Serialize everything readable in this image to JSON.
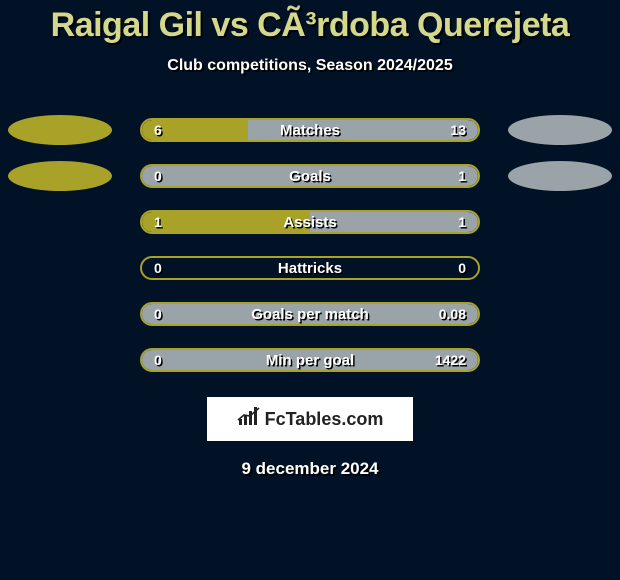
{
  "title": "Raigal Gil vs CÃ³rdoba Querejeta",
  "subtitle": "Club competitions, Season 2024/2025",
  "title_color": "#d4d88a",
  "left_color": "#a8a228",
  "right_color": "#9aa4a8",
  "track_border": "#a8a228",
  "background": "#011126",
  "rows": [
    {
      "label": "Matches",
      "left_val": "6",
      "right_val": "13",
      "left_pct": 31.6,
      "right_pct": 68.4,
      "show_ovals": true
    },
    {
      "label": "Goals",
      "left_val": "0",
      "right_val": "1",
      "left_pct": 0,
      "right_pct": 100,
      "show_ovals": true
    },
    {
      "label": "Assists",
      "left_val": "1",
      "right_val": "1",
      "left_pct": 50,
      "right_pct": 50,
      "show_ovals": false
    },
    {
      "label": "Hattricks",
      "left_val": "0",
      "right_val": "0",
      "left_pct": 0,
      "right_pct": 0,
      "show_ovals": false
    },
    {
      "label": "Goals per match",
      "left_val": "0",
      "right_val": "0.08",
      "left_pct": 0,
      "right_pct": 100,
      "show_ovals": false
    },
    {
      "label": "Min per goal",
      "left_val": "0",
      "right_val": "1422",
      "left_pct": 0,
      "right_pct": 100,
      "show_ovals": false
    }
  ],
  "logo_text": "FcTables.com",
  "date": "9 december 2024"
}
